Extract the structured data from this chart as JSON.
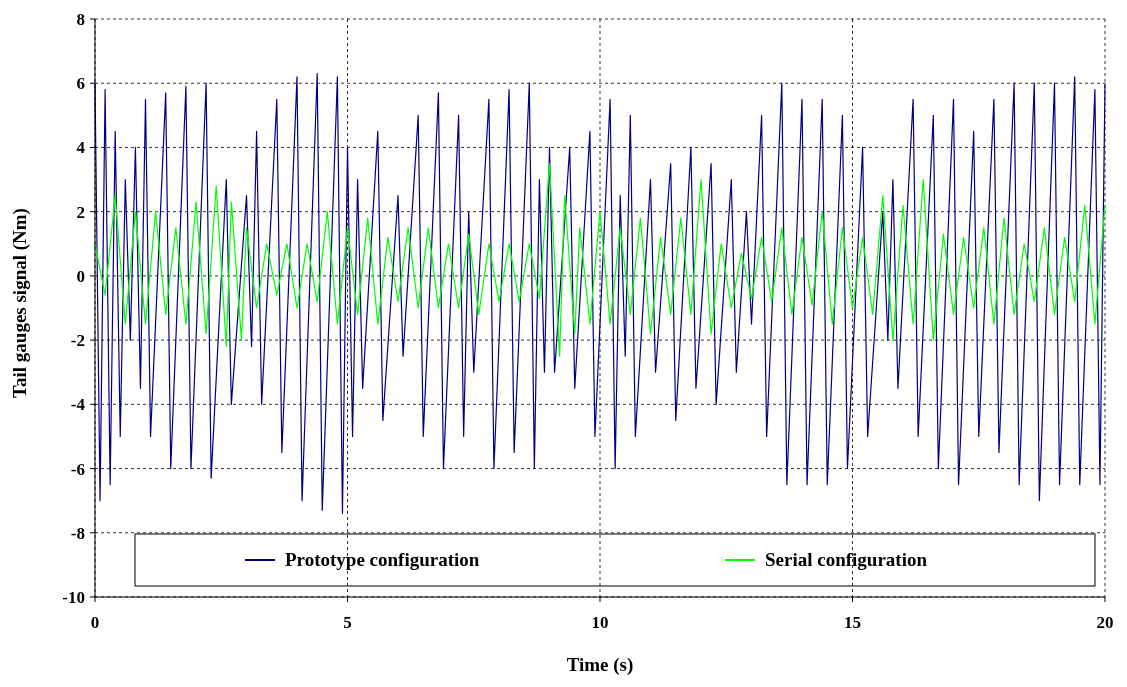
{
  "chart_data": {
    "type": "line",
    "xlabel": "Time (s)",
    "ylabel": "Tail gauges signal (Nm)",
    "xlim": [
      0,
      20
    ],
    "xticks": [
      0,
      5,
      10,
      15,
      20
    ],
    "ylim": [
      -10,
      8
    ],
    "yticks": [
      -10,
      -8,
      -6,
      -4,
      -2,
      0,
      2,
      4,
      6,
      8
    ],
    "grid": true,
    "legend": "bottom",
    "line_style": "solid",
    "marker": "none",
    "series": [
      {
        "name": "Prototype configuration",
        "color": "#000080",
        "x": [
          0,
          0.1,
          0.2,
          0.3,
          0.4,
          0.5,
          0.6,
          0.7,
          0.8,
          0.9,
          1.0,
          1.1,
          1.4,
          1.5,
          1.8,
          1.9,
          2.2,
          2.3,
          2.6,
          2.7,
          3.0,
          3.1,
          3.2,
          3.3,
          3.6,
          3.7,
          4.0,
          4.1,
          4.4,
          4.5,
          4.8,
          4.9,
          5.0,
          5.1,
          5.2,
          5.3,
          5.6,
          5.7,
          6.0,
          6.1,
          6.4,
          6.5,
          6.8,
          6.9,
          7.2,
          7.3,
          7.4,
          7.5,
          7.8,
          7.9,
          8.2,
          8.3,
          8.6,
          8.7,
          8.8,
          8.9,
          9.0,
          9.1,
          9.4,
          9.5,
          9.8,
          9.9,
          10.2,
          10.3,
          10.4,
          10.5,
          10.6,
          10.7,
          11.0,
          11.1,
          11.4,
          11.5,
          11.8,
          11.9,
          12.2,
          12.3,
          12.6,
          12.7,
          12.9,
          13.0,
          13.2,
          13.3,
          13.6,
          13.7,
          14.0,
          14.1,
          14.4,
          14.5,
          14.8,
          14.9,
          15.2,
          15.3,
          15.6,
          15.7,
          15.8,
          15.9,
          16.2,
          16.3,
          16.6,
          16.7,
          17.0,
          17.1,
          17.4,
          17.5,
          17.8,
          17.9,
          18.2,
          18.3,
          18.6,
          18.7,
          19.0,
          19.1,
          19.4,
          19.5,
          19.8,
          19.9,
          20
        ],
        "values": [
          6,
          -7,
          5.8,
          -6.5,
          4.5,
          -5,
          3,
          -2,
          4,
          -3.5,
          5.5,
          -5,
          5.7,
          -6,
          5.9,
          -6,
          6,
          -6.3,
          3,
          -4,
          2.5,
          -2.2,
          4.5,
          -4,
          5.5,
          -5.5,
          6.2,
          -7,
          6.3,
          -7.3,
          6.2,
          -7.4,
          4,
          -5,
          3,
          -3.5,
          4.5,
          -4.5,
          2.5,
          -2.5,
          5,
          -5,
          5.7,
          -6,
          5,
          -5,
          2,
          -3,
          5.5,
          -6,
          5.8,
          -5.5,
          6,
          -6,
          3,
          -3,
          4,
          -3,
          4,
          -3.5,
          4.5,
          -5,
          5.5,
          -6,
          2.5,
          -2.5,
          5,
          -5,
          3,
          -3,
          3.5,
          -4.5,
          4,
          -3.5,
          3.5,
          -4,
          3,
          -3,
          2,
          -1.5,
          5,
          -5,
          6,
          -6.5,
          5.5,
          -6.5,
          5.5,
          -6.5,
          5,
          -6,
          4,
          -5,
          2,
          -2,
          3,
          -3.5,
          5.5,
          -5,
          5,
          -6,
          5.5,
          -6.5,
          4.5,
          -5,
          5.5,
          -5.5,
          6,
          -6.5,
          6,
          -7,
          6,
          -6.5,
          6.2,
          -6.5,
          5.8,
          -6.5,
          6
        ]
      },
      {
        "name": "Serial configuration",
        "color": "#00ff00",
        "x": [
          0,
          0.2,
          0.4,
          0.6,
          0.8,
          1.0,
          1.2,
          1.4,
          1.6,
          1.8,
          2.0,
          2.2,
          2.4,
          2.6,
          2.7,
          2.9,
          3.0,
          3.2,
          3.4,
          3.6,
          3.8,
          4.0,
          4.2,
          4.4,
          4.6,
          4.8,
          5.0,
          5.2,
          5.4,
          5.6,
          5.8,
          6.0,
          6.2,
          6.4,
          6.6,
          6.8,
          7.0,
          7.2,
          7.4,
          7.6,
          7.8,
          8.0,
          8.2,
          8.4,
          8.6,
          8.8,
          9.0,
          9.2,
          9.3,
          9.5,
          9.6,
          9.8,
          10.0,
          10.2,
          10.4,
          10.6,
          10.8,
          11.0,
          11.2,
          11.4,
          11.6,
          11.8,
          12.0,
          12.2,
          12.4,
          12.6,
          12.8,
          13.0,
          13.2,
          13.4,
          13.6,
          13.8,
          14.0,
          14.2,
          14.4,
          14.6,
          14.8,
          15.0,
          15.2,
          15.4,
          15.6,
          15.8,
          16.0,
          16.2,
          16.4,
          16.6,
          16.8,
          17.0,
          17.2,
          17.4,
          17.6,
          17.8,
          18.0,
          18.2,
          18.4,
          18.6,
          18.8,
          19.0,
          19.2,
          19.4,
          19.6,
          19.8,
          20
        ],
        "values": [
          1,
          -0.6,
          2.5,
          -1.5,
          2,
          -1.5,
          2,
          -1.2,
          1.5,
          -1.5,
          2.3,
          -1.8,
          2.8,
          -2.2,
          2.3,
          -2,
          1.5,
          -1,
          1,
          -0.6,
          1,
          -1,
          1,
          -0.8,
          2,
          -1.5,
          1.5,
          -1.2,
          1.8,
          -1.5,
          1.2,
          -0.8,
          1.5,
          -1,
          1.5,
          -1,
          1,
          -1,
          1.3,
          -1.2,
          1,
          -0.8,
          1,
          -0.8,
          1,
          -0.7,
          3.5,
          -2.5,
          2.5,
          -1.8,
          1.5,
          -1.5,
          2,
          -1.5,
          1.5,
          -1.2,
          1.8,
          -1.8,
          1.2,
          -1.2,
          1.8,
          -1.2,
          3,
          -1.8,
          1,
          -1,
          0.7,
          -0.7,
          1.2,
          -0.8,
          1.5,
          -1.2,
          1.2,
          -0.9,
          2,
          -1.5,
          1.5,
          -1,
          1.2,
          -1.2,
          2.5,
          -2,
          2.2,
          -1.5,
          3,
          -2,
          1.3,
          -1.2,
          1.2,
          -1,
          1.5,
          -1.5,
          1.8,
          -1.2,
          1,
          -0.8,
          1.5,
          -1.2,
          1.2,
          -0.8,
          2.2,
          -1.5,
          2.2
        ]
      }
    ]
  }
}
